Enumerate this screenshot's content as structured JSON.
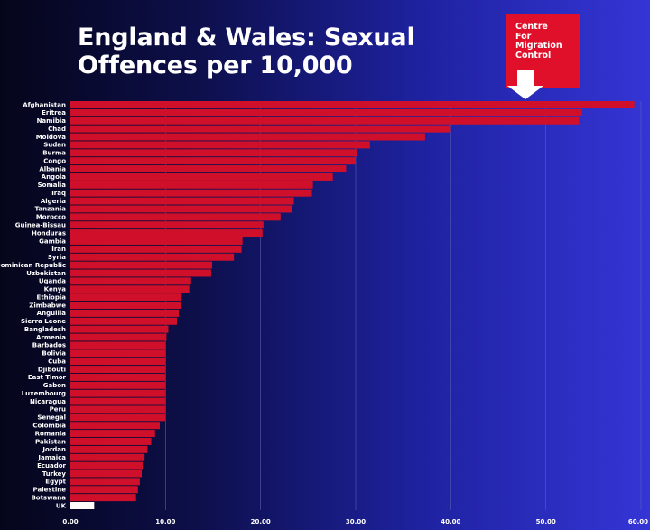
{
  "title_line1": "England & Wales: Sexual",
  "title_line2": "Offences per 10,000",
  "logo": {
    "lines": [
      "Centre",
      "For",
      "Migration",
      "Control"
    ],
    "color": "#e0102a",
    "icon": "down-arrow-icon"
  },
  "colors": {
    "bar": "#d0102a",
    "highlight_bar": "#ffffff",
    "grid": "#5a5fb0",
    "text": "#ffffff"
  },
  "chart_data": {
    "type": "bar",
    "orientation": "horizontal",
    "title": "England & Wales: Sexual Offences per 10,000",
    "xlim": [
      0,
      60
    ],
    "x_ticks": [
      "0.00",
      "10.00",
      "20.00",
      "30.00",
      "40.00",
      "50.00",
      "60.00"
    ],
    "grid": "vertical",
    "highlight": "UK",
    "categories": [
      "Afghanistan",
      "Eritrea",
      "Namibia",
      "Chad",
      "Moldova",
      "Sudan",
      "Burma",
      "Congo",
      "Albania",
      "Angola",
      "Somalia",
      "Iraq",
      "Algeria",
      "Tanzania",
      "Morocco",
      "Guinea-Bissau",
      "Honduras",
      "Gambia",
      "Iran",
      "Syria",
      "Dominican Republic",
      "Uzbekistan",
      "Uganda",
      "Kenya",
      "Ethiopia",
      "Zimbabwe",
      "Anguilla",
      "Sierra Leone",
      "Bangladesh",
      "Armenia",
      "Barbados",
      "Bolivia",
      "Cuba",
      "Djibouti",
      "East Timor",
      "Gabon",
      "Luxembourg",
      "Nicaragua",
      "Peru",
      "Senegal",
      "Colombia",
      "Romania",
      "Pakistan",
      "Jordan",
      "Jamaica",
      "Ecuador",
      "Turkey",
      "Egypt",
      "Palestine",
      "Botswana",
      "UK"
    ],
    "values": [
      59.3,
      53.8,
      53.5,
      40.0,
      37.3,
      31.5,
      30.1,
      30.0,
      29.0,
      27.6,
      25.5,
      25.4,
      23.5,
      23.3,
      22.1,
      20.3,
      20.2,
      18.1,
      18.0,
      17.2,
      14.9,
      14.8,
      12.7,
      12.5,
      11.7,
      11.6,
      11.4,
      11.2,
      10.3,
      10.1,
      10.0,
      10.0,
      10.0,
      10.0,
      10.0,
      10.0,
      10.0,
      10.0,
      10.0,
      10.0,
      9.4,
      8.9,
      8.5,
      8.1,
      7.8,
      7.6,
      7.5,
      7.3,
      7.1,
      6.9,
      2.5
    ]
  }
}
